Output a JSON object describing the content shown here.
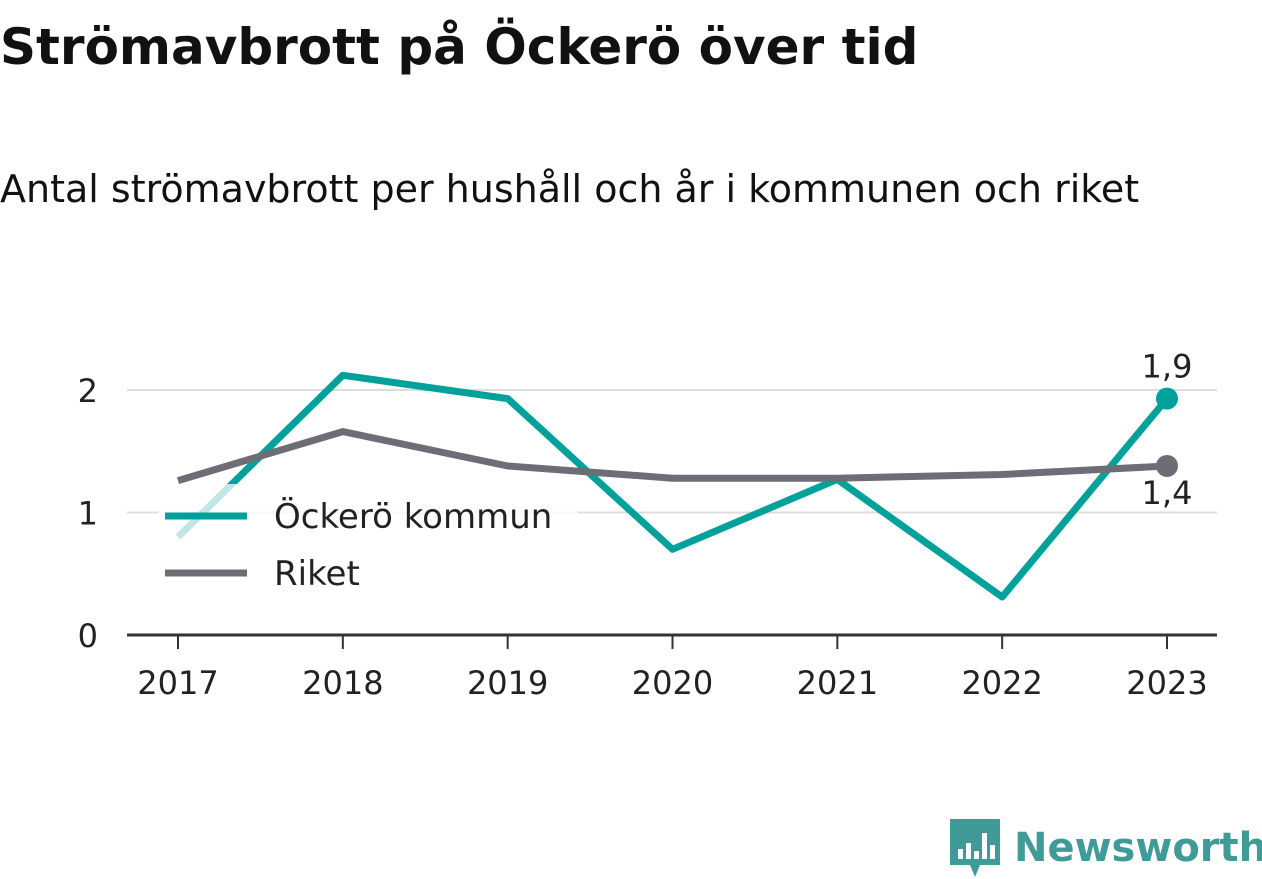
{
  "title": "Strömavbrott på Öckerö över tid",
  "subtitle": "Antal strömavbrott per hushåll och år i kommunen och riket",
  "brand": {
    "name": "Newsworthy",
    "color": "#3f9a98"
  },
  "chart_data": {
    "type": "line",
    "title": "Strömavbrott på Öckerö över tid",
    "subtitle": "Antal strömavbrott per hushåll och år i kommunen och riket",
    "xlabel": "",
    "ylabel": "",
    "x": [
      "2017",
      "2018",
      "2019",
      "2020",
      "2021",
      "2022",
      "2023"
    ],
    "ylim": [
      0,
      2.2
    ],
    "yticks": [
      0,
      1,
      2
    ],
    "ytick_labels": [
      "0",
      "1",
      "2"
    ],
    "grid": true,
    "legend_position": "inside-left",
    "series": [
      {
        "name": "Öckerö kommun",
        "color": "#00a19a",
        "values": [
          0.8,
          2.12,
          1.93,
          0.7,
          1.27,
          0.31,
          1.93
        ],
        "end_label": "1,9"
      },
      {
        "name": "Riket",
        "color": "#6e6d75",
        "values": [
          1.26,
          1.66,
          1.38,
          1.28,
          1.28,
          1.31,
          1.38
        ],
        "end_label": "1,4"
      }
    ]
  }
}
